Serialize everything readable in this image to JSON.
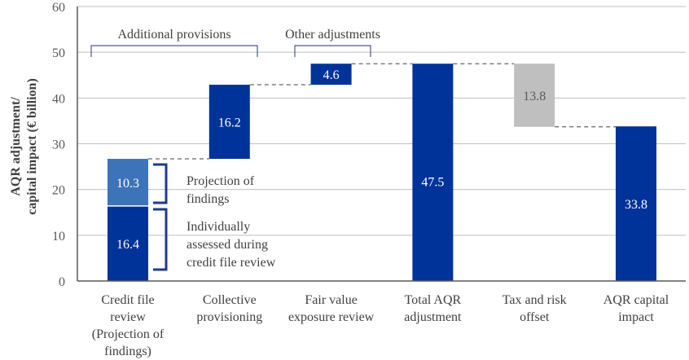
{
  "chart_data": {
    "type": "bar",
    "subtype": "waterfall",
    "title": "",
    "xlabel": "",
    "ylabel": [
      "AQR adjustment/",
      "capital impact (€ billion)"
    ],
    "ylim": [
      0,
      60
    ],
    "yticks": [
      0,
      10,
      20,
      30,
      40,
      50,
      60
    ],
    "grid": true,
    "categories": [
      [
        "Credit file",
        "review",
        "(Projection of",
        "findings)"
      ],
      [
        "Collective",
        "provisioning"
      ],
      [
        "Fair value",
        "exposure review"
      ],
      [
        "Total AQR",
        "adjustment"
      ],
      [
        "Tax and risk",
        "offset"
      ],
      [
        "AQR capital",
        "impact"
      ]
    ],
    "segments": [
      {
        "category_index": 0,
        "base": 0,
        "value": 16.4,
        "label": "16.4",
        "role": "individually-assessed",
        "color": "#003399",
        "label_color": "#ffffff"
      },
      {
        "category_index": 0,
        "base": 16.4,
        "value": 10.3,
        "label": "10.3",
        "role": "projection",
        "color": "#3d73b9",
        "label_color": "#ffffff"
      },
      {
        "category_index": 1,
        "base": 26.7,
        "value": 16.2,
        "label": "16.2",
        "role": "increase",
        "color": "#003399",
        "label_color": "#ffffff"
      },
      {
        "category_index": 2,
        "base": 42.9,
        "value": 4.6,
        "label": "4.6",
        "role": "increase",
        "color": "#003399",
        "label_color": "#ffffff"
      },
      {
        "category_index": 3,
        "base": 0,
        "value": 47.5,
        "label": "47.5",
        "role": "total",
        "color": "#003399",
        "label_color": "#ffffff"
      },
      {
        "category_index": 4,
        "base": 33.7,
        "value": 13.8,
        "label": "13.8",
        "role": "decrease",
        "color": "#bfbfbf",
        "label_color": "#595959"
      },
      {
        "category_index": 5,
        "base": 0,
        "value": 33.8,
        "label": "33.8",
        "role": "total",
        "color": "#003399",
        "label_color": "#ffffff"
      }
    ],
    "connectors": [
      {
        "from": 0,
        "to": 1,
        "y": 26.7
      },
      {
        "from": 1,
        "to": 2,
        "y": 42.9
      },
      {
        "from": 2,
        "to": 3,
        "y": 47.5
      },
      {
        "from": 3,
        "to": 4,
        "y": 47.5
      },
      {
        "from": 4,
        "to": 5,
        "y": 33.7
      }
    ],
    "group_annotations": [
      {
        "label": "Additional provisions",
        "from_category": 0,
        "to_category": 1
      },
      {
        "label": "Other adjustments",
        "from_category": 2,
        "to_category": 2
      }
    ],
    "segment_annotations": [
      {
        "segment_index": 1,
        "lines": [
          "Projection of",
          "findings"
        ]
      },
      {
        "segment_index": 0,
        "lines": [
          "Individually",
          "assessed during",
          "credit file review"
        ]
      }
    ]
  }
}
